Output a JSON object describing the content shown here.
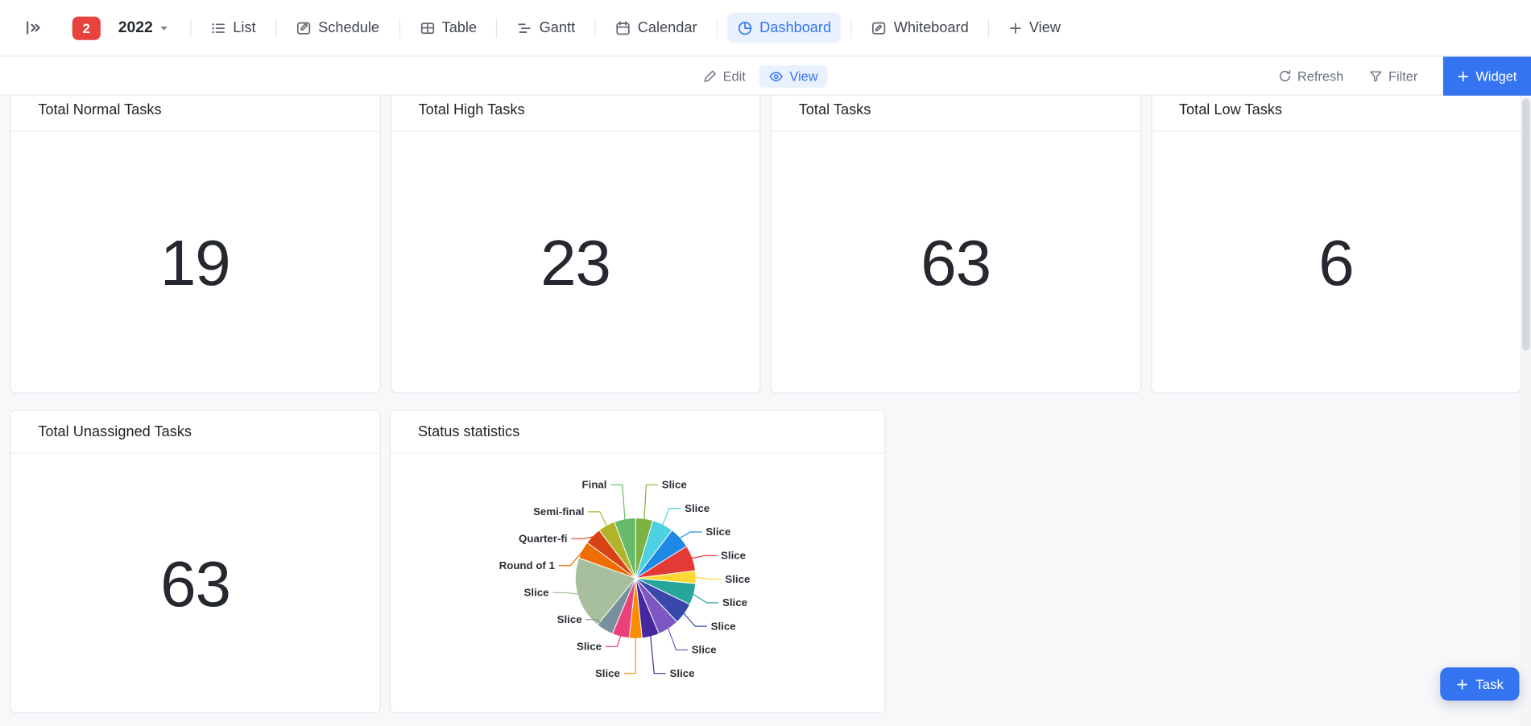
{
  "topbar": {
    "badge_count": "2",
    "space_name": "2022",
    "tabs": [
      {
        "label": "List",
        "icon": "list-icon",
        "active": false
      },
      {
        "label": "Schedule",
        "icon": "schedule-icon",
        "active": false
      },
      {
        "label": "Table",
        "icon": "table-icon",
        "active": false
      },
      {
        "label": "Gantt",
        "icon": "gantt-icon",
        "active": false
      },
      {
        "label": "Calendar",
        "icon": "calendar-icon",
        "active": false
      },
      {
        "label": "Dashboard",
        "icon": "dashboard-icon",
        "active": true
      },
      {
        "label": "Whiteboard",
        "icon": "whiteboard-icon",
        "active": false
      }
    ],
    "add_view_label": "View"
  },
  "toolbar": {
    "edit_label": "Edit",
    "view_label": "View",
    "refresh_label": "Refresh",
    "filter_label": "Filter",
    "widget_label": "Widget"
  },
  "cards": [
    {
      "title": "Total Normal Tasks",
      "value": "19"
    },
    {
      "title": "Total High Tasks",
      "value": "23"
    },
    {
      "title": "Total Tasks",
      "value": "63"
    },
    {
      "title": "Total Low Tasks",
      "value": "6"
    },
    {
      "title": "Total Unassigned Tasks",
      "value": "63"
    }
  ],
  "status_card": {
    "title": "Status statistics"
  },
  "chart_data": {
    "type": "pie",
    "title": "Status statistics",
    "legend": "none",
    "labels_position": "outside-with-leader-lines",
    "segments": [
      {
        "label": "Slice",
        "value": 4,
        "color": "#7cb342"
      },
      {
        "label": "Slice",
        "value": 5,
        "color": "#4dd0e1"
      },
      {
        "label": "Slice",
        "value": 5,
        "color": "#1e88e5"
      },
      {
        "label": "Slice",
        "value": 6,
        "color": "#e53935"
      },
      {
        "label": "Slice",
        "value": 3,
        "color": "#fdd835"
      },
      {
        "label": "Slice",
        "value": 5,
        "color": "#26a69a"
      },
      {
        "label": "Slice",
        "value": 5,
        "color": "#3949ab"
      },
      {
        "label": "Slice",
        "value": 5,
        "color": "#7e57c2"
      },
      {
        "label": "Slice",
        "value": 4,
        "color": "#4527a0"
      },
      {
        "label": "Slice",
        "value": 3,
        "color": "#fb8c00"
      },
      {
        "label": "Slice",
        "value": 4,
        "color": "#ec407a"
      },
      {
        "label": "Slice",
        "value": 4,
        "color": "#78909c"
      },
      {
        "label": "Slice",
        "value": 17,
        "color": "#a8bf9e"
      },
      {
        "label": "Round of 1",
        "value": 4,
        "color": "#ef6c00"
      },
      {
        "label": "Quarter-fi",
        "value": 4,
        "color": "#d84315"
      },
      {
        "label": "Semi-final",
        "value": 4,
        "color": "#afb42b"
      },
      {
        "label": "Final",
        "value": 5,
        "color": "#66bb6a"
      }
    ]
  },
  "task_button_label": "Task",
  "icons": {
    "caret-down-icon": "▾",
    "plus-icon": "+"
  },
  "colors": {
    "accent": "#3574f0",
    "accent_bg": "#e9f1fe",
    "badge_red": "#e8433f",
    "page_bg": "#f7f8fa",
    "text_dark": "#25282e",
    "text_muted": "#6b7280",
    "border": "#e6e8ee"
  }
}
